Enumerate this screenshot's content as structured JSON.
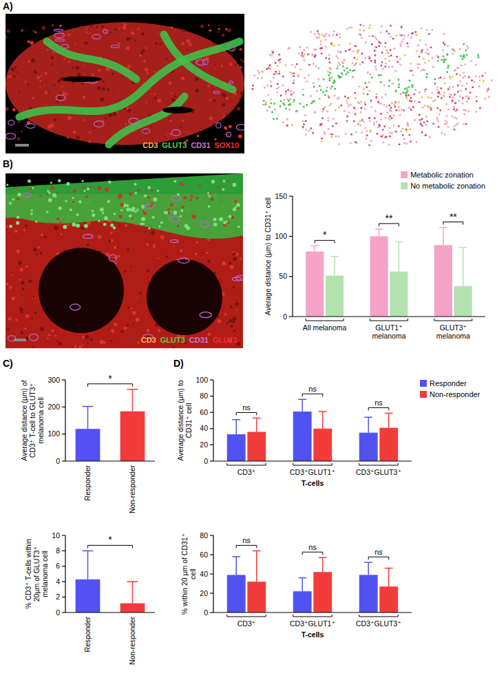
{
  "figure": {
    "panel_labels": [
      "A)",
      "B)",
      "C)",
      "D)"
    ],
    "images": [
      {
        "channels": [
          {
            "name": "CD3",
            "color": "#f5b942"
          },
          {
            "name": "GLUT3",
            "color": "#4cd64c"
          },
          {
            "name": "CD31",
            "color": "#c77bd6"
          },
          {
            "name": "SOX10",
            "color": "#ff2a2a"
          }
        ]
      },
      {
        "channels": [
          {
            "name": "CD3",
            "color": "#f5b942"
          },
          {
            "name": "GLUT3",
            "color": "#4cd64c"
          },
          {
            "name": "CD31",
            "color": "#c77bd6"
          },
          {
            "name": "GLUT1",
            "color": "#ff2a2a"
          }
        ]
      }
    ]
  },
  "chart_data": [
    {
      "type": "bar",
      "ylabel": "Average distance (µm) to CD31⁺ cell",
      "categories": [
        "All melanoma",
        "GLUT1⁺ melanoma",
        "GLUT3⁺ melanoma"
      ],
      "series": [
        {
          "name": "Metabolic zonation",
          "color": "#f5a3c7",
          "values": [
            81,
            100,
            89
          ],
          "errors": [
            7,
            9,
            22
          ]
        },
        {
          "name": "No metabolic zonation",
          "color": "#b3e2b0",
          "values": [
            51,
            56,
            38
          ],
          "errors": [
            24,
            37,
            48
          ]
        }
      ],
      "ylim": [
        0,
        150
      ],
      "yticks": [
        0,
        50,
        100,
        150
      ],
      "annotations": [
        "*",
        "**",
        "**"
      ],
      "legend": "top-right"
    },
    {
      "type": "bar",
      "ylabel": "Average distance (µm) of CD3⁺ T-cell to GLUT3⁺ melanoma cell",
      "categories": [
        "Responder",
        "Non-responder"
      ],
      "values": [
        119,
        184
      ],
      "errors": [
        83,
        81
      ],
      "colors": [
        "#5252f2",
        "#f23c3c"
      ],
      "ylim": [
        0,
        300
      ],
      "yticks": [
        0,
        100,
        200,
        300
      ],
      "annotations": [
        "*"
      ]
    },
    {
      "type": "bar",
      "ylabel": "% CD3⁺ T-cells within 20µm of GLUT3⁺ melanoma cell",
      "categories": [
        "Responder",
        "Non-responder"
      ],
      "values": [
        4.3,
        1.2
      ],
      "errors": [
        3.7,
        2.8
      ],
      "colors": [
        "#5252f2",
        "#f23c3c"
      ],
      "ylim": [
        0,
        10
      ],
      "yticks": [
        0,
        2,
        4,
        6,
        8,
        10
      ],
      "annotations": [
        "*"
      ]
    },
    {
      "type": "bar",
      "ylabel": "Average distance (µm) to CD31⁺ cell",
      "xlabel": "T-cells",
      "categories": [
        "CD3⁺",
        "CD3⁺GLUT1⁺",
        "CD3⁺GLUT3⁺"
      ],
      "series": [
        {
          "name": "Responder",
          "color": "#5252f2",
          "values": [
            33,
            61,
            35
          ],
          "errors": [
            18,
            15,
            19
          ]
        },
        {
          "name": "Non-responder",
          "color": "#f23c3c",
          "values": [
            36,
            40,
            41
          ],
          "errors": [
            17,
            21,
            18
          ]
        }
      ],
      "ylim": [
        0,
        100
      ],
      "yticks": [
        0,
        20,
        40,
        60,
        80,
        100
      ],
      "annotations": [
        "ns",
        "ns",
        "ns"
      ],
      "legend": "right"
    },
    {
      "type": "bar",
      "ylabel": "% within 20 µm of CD31⁺ cell",
      "xlabel": "T-cells",
      "categories": [
        "CD3⁺",
        "CD3⁺GLUT1⁺",
        "CD3⁺GLUT3⁺"
      ],
      "series": [
        {
          "name": "Responder",
          "color": "#5252f2",
          "values": [
            39,
            22,
            39
          ],
          "errors": [
            19,
            14,
            13
          ]
        },
        {
          "name": "Non-responder",
          "color": "#f23c3c",
          "values": [
            32,
            42,
            27
          ],
          "errors": [
            32,
            15,
            19
          ]
        }
      ],
      "ylim": [
        0,
        80
      ],
      "yticks": [
        0,
        20,
        40,
        60,
        80
      ],
      "annotations": [
        "ns",
        "ns",
        "ns"
      ]
    }
  ]
}
